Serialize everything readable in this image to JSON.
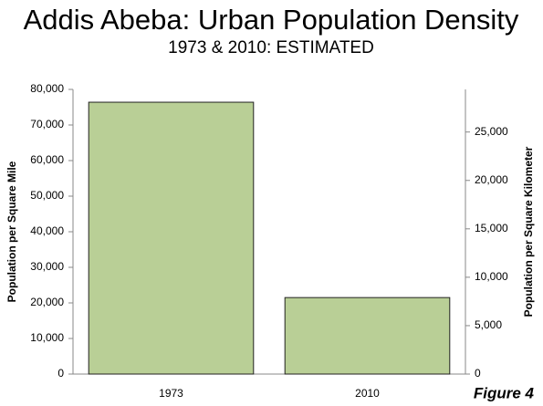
{
  "chart_data": {
    "type": "bar",
    "title": "Addis Abeba: Urban Population Density",
    "subtitle": "1973 & 2010: ESTIMATED",
    "ylabel": "Population per Square Mile",
    "y2label": "Population per Square Kilometer",
    "annotation": "Figure 4",
    "categories": [
      "1973",
      "2010"
    ],
    "series": [
      {
        "color": "#b9cf96",
        "values": [
          76400,
          21500
        ]
      }
    ],
    "ylim": [
      0,
      80000
    ],
    "yticks": [
      0,
      {
        "value": 10000,
        "label": "10,000"
      },
      {
        "value": 20000,
        "label": "20,000"
      },
      {
        "value": 30000,
        "label": "30,000"
      },
      {
        "value": 40000,
        "label": "40,000"
      },
      {
        "value": 50000,
        "label": "50,000"
      },
      {
        "value": 60000,
        "label": "60,000"
      },
      {
        "value": 70000,
        "label": "70,000"
      },
      {
        "value": 80000,
        "label": "80,000"
      }
    ],
    "y2lim": [
      0,
      29400
    ],
    "y2ticks": [
      0,
      {
        "value": 5000,
        "label": "5,000"
      },
      {
        "value": 10000,
        "label": "10,000"
      },
      {
        "value": 15000,
        "label": "15,000"
      },
      {
        "value": 20000,
        "label": "20,000"
      },
      {
        "value": 25000,
        "label": "25,000"
      }
    ]
  }
}
